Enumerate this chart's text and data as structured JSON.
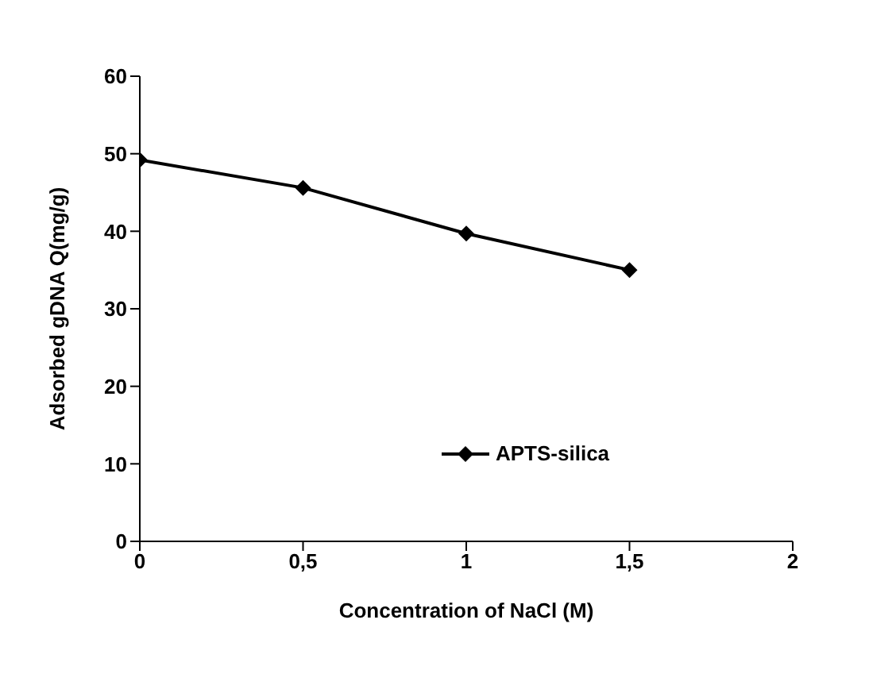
{
  "chart_data": {
    "type": "line",
    "xlabel": "Concentration of NaCl (M)",
    "ylabel": "Adsorbed gDNA Q(mg/g)",
    "x": [
      0,
      0.5,
      1,
      1.5
    ],
    "series": [
      {
        "name": "APTS-silica",
        "color": "#000000",
        "values": [
          49.2,
          45.6,
          39.7,
          35.0
        ]
      }
    ],
    "xlim": [
      0,
      2
    ],
    "xticks": [
      0,
      {
        "value": 0.5,
        "label": "0,5"
      },
      1,
      {
        "value": 1.5,
        "label": "1,5"
      },
      2
    ],
    "ylim": [
      0,
      60
    ],
    "yticks": [
      0,
      10,
      20,
      30,
      40,
      50,
      60
    ],
    "grid": false,
    "legend": "center",
    "marker": "diamond",
    "line_style": "solid"
  }
}
